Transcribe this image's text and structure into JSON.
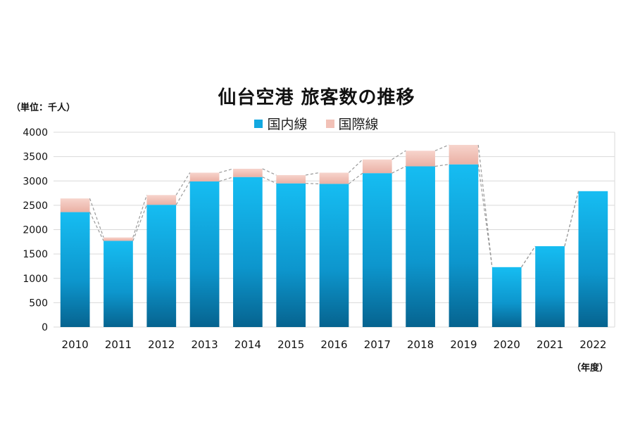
{
  "chart_data": {
    "type": "bar",
    "stacked": true,
    "title": "仙台空港 旅客数の推移",
    "unit_label": "（単位：千人）",
    "axis_unit_label": "（年度）",
    "categories": [
      "2010",
      "2011",
      "2012",
      "2013",
      "2014",
      "2015",
      "2016",
      "2017",
      "2018",
      "2019",
      "2020",
      "2021",
      "2022"
    ],
    "series": [
      {
        "name": "国内線",
        "color": "#12a8e0",
        "values": [
          2360,
          1770,
          2510,
          2990,
          3080,
          2950,
          2940,
          3160,
          3300,
          3340,
          1230,
          1660,
          2790
        ]
      },
      {
        "name": "国際線",
        "color": "#f2c1b7",
        "values": [
          280,
          70,
          200,
          180,
          170,
          170,
          230,
          280,
          320,
          400,
          0,
          0,
          0
        ]
      }
    ],
    "y_ticks": [
      0,
      500,
      1000,
      1500,
      2000,
      2500,
      3000,
      3500,
      4000
    ],
    "ylim": [
      0,
      4000
    ],
    "grid": true,
    "series_lines": "dashed",
    "legend_position": "top-center"
  }
}
